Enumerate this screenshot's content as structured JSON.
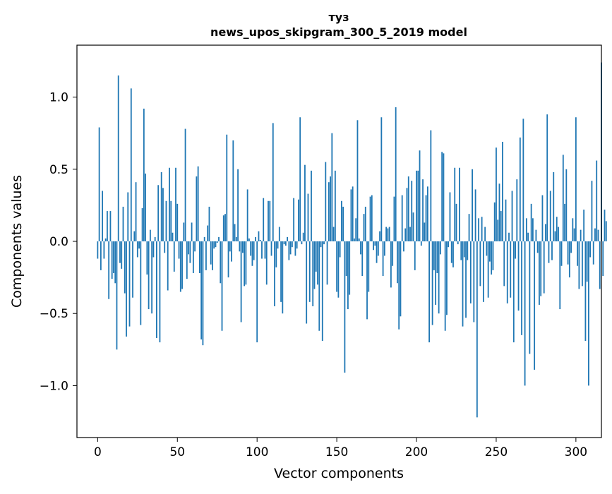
{
  "chart_data": {
    "type": "bar",
    "title_line1": "туз",
    "title_line2": "news_upos_skipgram_300_5_2019 model",
    "xlabel": "Vector components",
    "ylabel": "Components values",
    "xlim": [
      -13,
      316
    ],
    "ylim": [
      -1.36,
      1.36
    ],
    "xticks": [
      0,
      50,
      100,
      150,
      200,
      250,
      300
    ],
    "xtick_labels": [
      "0",
      "50",
      "100",
      "150",
      "200",
      "250",
      "300"
    ],
    "yticks": [
      -1.0,
      -0.5,
      0.0,
      0.5,
      1.0
    ],
    "ytick_labels": [
      "−1.0",
      "−0.5",
      "0.0",
      "0.5",
      "1.0"
    ],
    "bar_color": "#1f77b4",
    "values": [
      -0.12,
      0.79,
      -0.2,
      0.35,
      -0.12,
      0.02,
      0.21,
      -0.4,
      0.21,
      -0.26,
      -0.22,
      -0.29,
      -0.75,
      1.15,
      -0.15,
      -0.19,
      0.24,
      -0.36,
      -0.66,
      0.34,
      -0.59,
      1.06,
      -0.39,
      0.07,
      0.41,
      -0.11,
      -0.05,
      -0.58,
      0.23,
      0.92,
      0.47,
      -0.23,
      -0.47,
      0.08,
      -0.5,
      -0.11,
      0.03,
      -0.67,
      0.39,
      -0.7,
      0.48,
      0.37,
      -0.08,
      0.28,
      -0.34,
      0.51,
      0.28,
      0.06,
      -0.21,
      0.51,
      0.26,
      -0.12,
      -0.35,
      -0.33,
      0.13,
      0.78,
      -0.26,
      -0.09,
      -0.15,
      0.13,
      -0.22,
      -0.07,
      0.45,
      0.52,
      -0.22,
      -0.68,
      -0.72,
      0.03,
      -0.2,
      0.11,
      0.24,
      -0.16,
      -0.2,
      -0.05,
      -0.04,
      -0.01,
      0.03,
      -0.29,
      -0.62,
      0.18,
      0.19,
      0.74,
      -0.25,
      -0.07,
      -0.14,
      0.7,
      0.12,
      0.03,
      0.5,
      -0.07,
      -0.56,
      -0.08,
      -0.31,
      -0.3,
      0.36,
      0.02,
      -0.1,
      -0.17,
      -0.13,
      0.03,
      -0.7,
      0.07,
      0.01,
      -0.12,
      0.3,
      -0.12,
      -0.3,
      0.28,
      0.28,
      -0.1,
      0.82,
      -0.45,
      -0.18,
      -0.05,
      0.1,
      -0.42,
      -0.5,
      -0.02,
      -0.03,
      0.03,
      -0.13,
      -0.09,
      -0.04,
      0.3,
      -0.1,
      -0.05,
      0.29,
      0.86,
      -0.02,
      0.06,
      0.53,
      -0.57,
      0.33,
      -0.42,
      0.49,
      -0.45,
      -0.33,
      -0.21,
      -0.3,
      -0.62,
      -0.04,
      -0.69,
      -0.02,
      0.55,
      -0.3,
      0.41,
      0.45,
      0.75,
      0.1,
      0.49,
      -0.35,
      -0.39,
      -0.11,
      0.28,
      0.24,
      -0.91,
      -0.24,
      -0.47,
      -0.37,
      0.36,
      0.38,
      0.02,
      0.16,
      0.84,
      0.02,
      -0.09,
      -0.24,
      0.19,
      0.24,
      -0.54,
      -0.35,
      0.31,
      0.32,
      -0.06,
      -0.03,
      -0.15,
      -0.1,
      0.07,
      0.86,
      -0.24,
      -0.1,
      0.1,
      0.09,
      0.1,
      -0.32,
      -0.17,
      0.31,
      0.93,
      -0.29,
      -0.61,
      -0.52,
      0.32,
      -0.07,
      0.09,
      0.37,
      0.45,
      0.1,
      0.42,
      0.2,
      -0.2,
      0.49,
      0.49,
      0.63,
      -0.03,
      0.43,
      0.13,
      0.32,
      0.38,
      -0.7,
      0.77,
      -0.58,
      -0.2,
      -0.44,
      -0.22,
      -0.5,
      -0.09,
      0.62,
      0.61,
      -0.62,
      -0.51,
      -0.04,
      0.34,
      -0.15,
      -0.18,
      0.51,
      0.26,
      -0.02,
      0.51,
      -0.13,
      -0.59,
      -0.11,
      -0.53,
      -0.13,
      0.19,
      -0.43,
      0.5,
      -0.56,
      0.36,
      -1.22,
      0.16,
      -0.31,
      0.17,
      -0.42,
      0.1,
      -0.1,
      -0.39,
      -0.14,
      -0.23,
      -0.2,
      0.27,
      0.65,
      0.15,
      0.4,
      0.21,
      0.69,
      -0.31,
      0.29,
      -0.43,
      0.06,
      -0.39,
      0.35,
      -0.7,
      -0.12,
      0.43,
      -0.48,
      0.72,
      -0.65,
      0.85,
      -1.0,
      0.16,
      0.06,
      -0.78,
      0.26,
      0.16,
      -0.89,
      0.08,
      -0.08,
      -0.44,
      -0.38,
      0.32,
      -0.36,
      0.12,
      0.88,
      -0.15,
      0.35,
      -0.13,
      0.48,
      0.07,
      0.17,
      0.1,
      -0.47,
      -0.17,
      0.6,
      0.26,
      0.5,
      -0.16,
      -0.25,
      -0.08,
      0.16,
      0.09,
      0.86,
      -0.17,
      -0.33,
      0.08,
      -0.31,
      0.22,
      -0.69,
      -0.28,
      -1.0,
      -0.11,
      0.42,
      -0.16,
      0.09,
      0.56,
      0.08,
      -0.33,
      1.24,
      -0.24,
      0.22,
      0.14
    ]
  }
}
